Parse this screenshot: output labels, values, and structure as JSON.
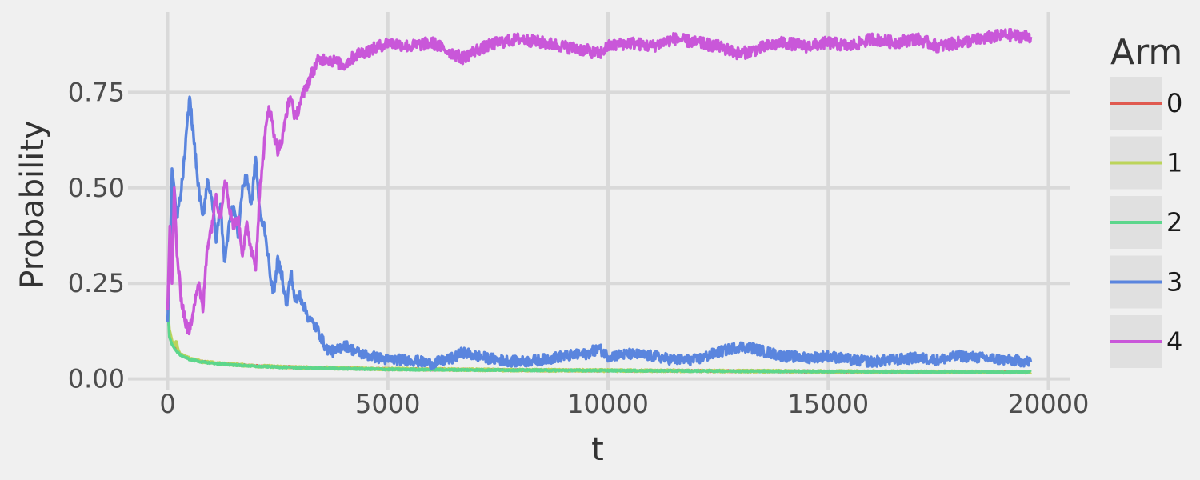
{
  "chart_data": {
    "type": "line",
    "title": "",
    "xlabel": "t",
    "ylabel": "Probability",
    "xlim": [
      -900,
      20500
    ],
    "ylim": [
      -0.03,
      0.96
    ],
    "x_ticks": [
      0,
      5000,
      10000,
      15000,
      20000
    ],
    "x_tick_labels": [
      "0",
      "5000",
      "10000",
      "15000",
      "20000"
    ],
    "y_ticks": [
      0.0,
      0.25,
      0.5,
      0.75
    ],
    "y_tick_labels": [
      "0.00",
      "0.25",
      "0.50",
      "0.75"
    ],
    "grid": true,
    "background": "#f0f0f0",
    "grid_color": "#d9d9d9",
    "legend": {
      "title": "Arm",
      "position": "right"
    },
    "series": [
      {
        "name": "0",
        "color": "#e05a50",
        "x": [
          0,
          40,
          100,
          200,
          300,
          500,
          800,
          1200,
          2000,
          3000,
          5000,
          8000,
          12000,
          16000,
          19600
        ],
        "y": [
          0.2,
          0.12,
          0.095,
          0.075,
          0.063,
          0.052,
          0.045,
          0.04,
          0.034,
          0.03,
          0.026,
          0.023,
          0.021,
          0.019,
          0.018
        ]
      },
      {
        "name": "1",
        "color": "#bcd45a",
        "x": [
          0,
          40,
          100,
          150,
          200,
          250,
          300,
          500,
          800,
          1200,
          2000,
          3000,
          5000,
          8000,
          12000,
          16000,
          19600
        ],
        "y": [
          0.2,
          0.13,
          0.1,
          0.085,
          0.1,
          0.07,
          0.065,
          0.053,
          0.045,
          0.04,
          0.034,
          0.03,
          0.026,
          0.023,
          0.021,
          0.019,
          0.018
        ]
      },
      {
        "name": "2",
        "color": "#5cd68c",
        "x": [
          0,
          40,
          100,
          200,
          300,
          500,
          800,
          1200,
          2000,
          3000,
          5000,
          8000,
          12000,
          16000,
          19600
        ],
        "y": [
          0.2,
          0.11,
          0.09,
          0.072,
          0.062,
          0.051,
          0.044,
          0.039,
          0.033,
          0.029,
          0.025,
          0.023,
          0.021,
          0.019,
          0.018
        ]
      },
      {
        "name": "3",
        "color": "#5a85de",
        "x": [
          0,
          50,
          100,
          150,
          200,
          300,
          400,
          500,
          600,
          700,
          800,
          900,
          1000,
          1100,
          1200,
          1300,
          1400,
          1500,
          1600,
          1700,
          1800,
          1900,
          2000,
          2100,
          2200,
          2300,
          2400,
          2500,
          2600,
          2700,
          2800,
          2900,
          3000,
          3200,
          3400,
          3600,
          3800,
          4000,
          4300,
          4600,
          5000,
          5500,
          6000,
          6500,
          6700,
          7000,
          7500,
          8000,
          8500,
          9000,
          9500,
          9800,
          10000,
          10500,
          11000,
          11500,
          12000,
          12500,
          13000,
          13300,
          13600,
          14000,
          14500,
          15000,
          15500,
          16000,
          16500,
          17000,
          17500,
          18000,
          18500,
          19000,
          19600
        ],
        "y": [
          0.15,
          0.3,
          0.55,
          0.5,
          0.42,
          0.48,
          0.6,
          0.74,
          0.62,
          0.5,
          0.42,
          0.52,
          0.48,
          0.36,
          0.45,
          0.3,
          0.42,
          0.45,
          0.38,
          0.5,
          0.53,
          0.45,
          0.58,
          0.42,
          0.4,
          0.3,
          0.22,
          0.31,
          0.27,
          0.19,
          0.28,
          0.2,
          0.22,
          0.16,
          0.13,
          0.08,
          0.07,
          0.09,
          0.07,
          0.06,
          0.05,
          0.05,
          0.04,
          0.055,
          0.07,
          0.06,
          0.05,
          0.045,
          0.05,
          0.06,
          0.065,
          0.08,
          0.06,
          0.065,
          0.06,
          0.05,
          0.05,
          0.07,
          0.085,
          0.08,
          0.07,
          0.06,
          0.055,
          0.06,
          0.05,
          0.045,
          0.05,
          0.055,
          0.05,
          0.06,
          0.055,
          0.05,
          0.045
        ]
      },
      {
        "name": "4",
        "color": "#c957d9",
        "x": [
          0,
          50,
          100,
          150,
          200,
          250,
          300,
          400,
          500,
          600,
          700,
          800,
          900,
          1000,
          1100,
          1200,
          1300,
          1400,
          1500,
          1600,
          1700,
          1800,
          1900,
          2000,
          2100,
          2200,
          2300,
          2400,
          2500,
          2600,
          2700,
          2800,
          2900,
          3000,
          3200,
          3400,
          3600,
          3800,
          4000,
          4300,
          4600,
          5000,
          5500,
          6000,
          6500,
          6700,
          7000,
          7500,
          8000,
          8500,
          9000,
          9500,
          9800,
          10000,
          10500,
          11000,
          11500,
          12000,
          12500,
          13000,
          13300,
          13600,
          14000,
          14500,
          15000,
          15500,
          16000,
          16500,
          17000,
          17500,
          18000,
          18500,
          19000,
          19600
        ],
        "y": [
          0.18,
          0.4,
          0.25,
          0.5,
          0.35,
          0.28,
          0.22,
          0.15,
          0.12,
          0.2,
          0.25,
          0.18,
          0.35,
          0.4,
          0.48,
          0.42,
          0.53,
          0.45,
          0.4,
          0.42,
          0.33,
          0.4,
          0.34,
          0.3,
          0.5,
          0.62,
          0.72,
          0.65,
          0.6,
          0.62,
          0.7,
          0.74,
          0.68,
          0.72,
          0.78,
          0.83,
          0.84,
          0.83,
          0.82,
          0.85,
          0.86,
          0.88,
          0.87,
          0.88,
          0.85,
          0.84,
          0.86,
          0.88,
          0.89,
          0.88,
          0.87,
          0.86,
          0.85,
          0.87,
          0.88,
          0.87,
          0.89,
          0.88,
          0.87,
          0.85,
          0.86,
          0.87,
          0.88,
          0.87,
          0.88,
          0.87,
          0.89,
          0.88,
          0.89,
          0.87,
          0.88,
          0.89,
          0.9,
          0.895
        ]
      }
    ]
  }
}
